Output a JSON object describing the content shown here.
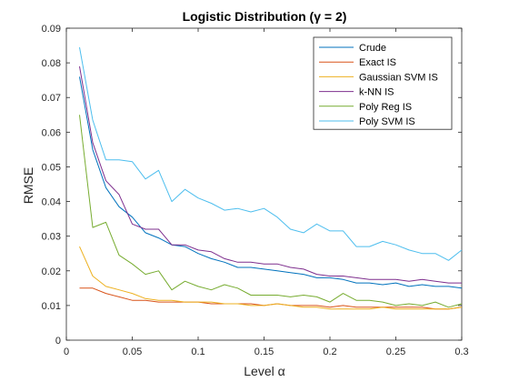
{
  "chart_data": {
    "type": "line",
    "title": "Logistic Distribution (γ = 2)",
    "xlabel": "Level α",
    "ylabel": "RMSE",
    "xlim": [
      0,
      0.3
    ],
    "ylim": [
      0,
      0.09
    ],
    "xticks": [
      0,
      0.05,
      0.1,
      0.15,
      0.2,
      0.25,
      0.3
    ],
    "xtick_labels": [
      "0",
      "0.05",
      "0.1",
      "0.15",
      "0.2",
      "0.25",
      "0.3"
    ],
    "yticks": [
      0,
      0.01,
      0.02,
      0.03,
      0.04,
      0.05,
      0.06,
      0.07,
      0.08,
      0.09
    ],
    "ytick_labels": [
      "0",
      "0.01",
      "0.02",
      "0.03",
      "0.04",
      "0.05",
      "0.06",
      "0.07",
      "0.08",
      "0.09"
    ],
    "grid": false,
    "legend_position": "top-right",
    "x": [
      0.01,
      0.02,
      0.03,
      0.04,
      0.05,
      0.06,
      0.07,
      0.08,
      0.09,
      0.1,
      0.11,
      0.12,
      0.13,
      0.14,
      0.15,
      0.16,
      0.17,
      0.18,
      0.19,
      0.2,
      0.21,
      0.22,
      0.23,
      0.24,
      0.25,
      0.26,
      0.27,
      0.28,
      0.29,
      0.3
    ],
    "series": [
      {
        "name": "Crude",
        "color": "#0072BD",
        "values": [
          0.076,
          0.055,
          0.044,
          0.0385,
          0.0355,
          0.031,
          0.0295,
          0.0275,
          0.027,
          0.025,
          0.0235,
          0.0225,
          0.021,
          0.021,
          0.0205,
          0.02,
          0.0195,
          0.019,
          0.018,
          0.018,
          0.0175,
          0.0165,
          0.0165,
          0.016,
          0.0165,
          0.0155,
          0.016,
          0.0155,
          0.0155,
          0.015
        ]
      },
      {
        "name": "Exact IS",
        "color": "#D95319",
        "values": [
          0.015,
          0.015,
          0.0135,
          0.0125,
          0.0115,
          0.0115,
          0.011,
          0.011,
          0.011,
          0.011,
          0.0105,
          0.0105,
          0.0105,
          0.0105,
          0.01,
          0.0105,
          0.01,
          0.01,
          0.01,
          0.0095,
          0.01,
          0.0095,
          0.0095,
          0.0095,
          0.0095,
          0.0095,
          0.0095,
          0.009,
          0.009,
          0.0095
        ]
      },
      {
        "name": "Gaussian SVM IS",
        "color": "#EDB120",
        "values": [
          0.027,
          0.0185,
          0.0155,
          0.0145,
          0.0135,
          0.012,
          0.0115,
          0.0115,
          0.011,
          0.011,
          0.011,
          0.0105,
          0.0105,
          0.01,
          0.01,
          0.0105,
          0.01,
          0.0095,
          0.0095,
          0.009,
          0.009,
          0.009,
          0.009,
          0.0095,
          0.009,
          0.009,
          0.009,
          0.009,
          0.009,
          0.0095
        ]
      },
      {
        "name": "k-NN IS",
        "color": "#7E2F8E",
        "values": [
          0.079,
          0.057,
          0.046,
          0.042,
          0.0335,
          0.032,
          0.032,
          0.0275,
          0.0275,
          0.026,
          0.0255,
          0.0235,
          0.0225,
          0.0225,
          0.022,
          0.022,
          0.021,
          0.0205,
          0.019,
          0.0185,
          0.0185,
          0.018,
          0.0175,
          0.0175,
          0.0175,
          0.017,
          0.0175,
          0.017,
          0.0165,
          0.0165
        ]
      },
      {
        "name": "Poly Reg IS",
        "color": "#77AC30",
        "values": [
          0.065,
          0.0325,
          0.034,
          0.0245,
          0.022,
          0.019,
          0.02,
          0.0145,
          0.017,
          0.0155,
          0.0145,
          0.016,
          0.015,
          0.013,
          0.013,
          0.013,
          0.0125,
          0.013,
          0.0125,
          0.011,
          0.0135,
          0.0115,
          0.0115,
          0.011,
          0.01,
          0.0105,
          0.01,
          0.011,
          0.0095,
          0.0105
        ]
      },
      {
        "name": "Poly SVM IS",
        "color": "#4DBEEE",
        "values": [
          0.0845,
          0.0635,
          0.052,
          0.052,
          0.0515,
          0.0465,
          0.049,
          0.04,
          0.0435,
          0.041,
          0.0395,
          0.0375,
          0.038,
          0.037,
          0.038,
          0.0355,
          0.032,
          0.031,
          0.0335,
          0.0315,
          0.0315,
          0.027,
          0.027,
          0.0285,
          0.0275,
          0.026,
          0.025,
          0.025,
          0.023,
          0.026
        ]
      }
    ]
  }
}
